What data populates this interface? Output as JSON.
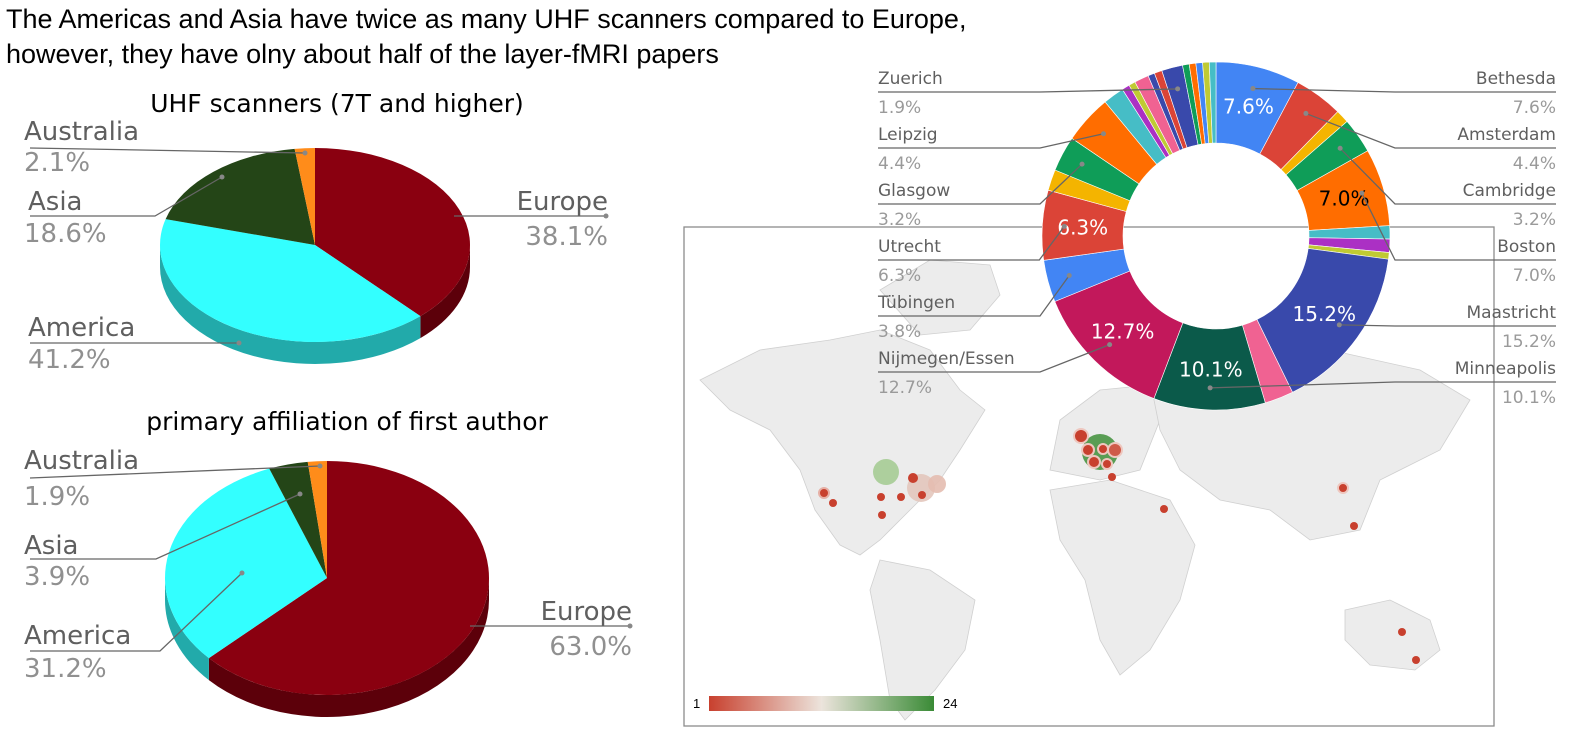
{
  "headline": {
    "line1": "The Americas and Asia have twice as many UHF scanners compared to Europe,",
    "line2": "however, they have olny about half of the layer-fMRI papers"
  },
  "chart_data": [
    {
      "id": "scanners",
      "type": "pie",
      "title": "UHF scanners (7T and higher)",
      "style": "3d",
      "slices": [
        {
          "label": "Europe",
          "value": 38.1,
          "pct_text": "38.1%",
          "color": "#8a0010",
          "side": "#5c000a"
        },
        {
          "label": "America",
          "value": 41.2,
          "pct_text": "41.2%",
          "color": "#33ffff",
          "side": "#22aaaa"
        },
        {
          "label": "Asia",
          "value": 18.6,
          "pct_text": "18.6%",
          "color": "#244517",
          "side": "#15290d"
        },
        {
          "label": "Australia",
          "value": 2.1,
          "pct_text": "2.1%",
          "color": "#ff8c1a",
          "side": "#c06000"
        }
      ]
    },
    {
      "id": "affiliation",
      "type": "pie",
      "title": "primary affiliation of first author",
      "style": "3d",
      "slices": [
        {
          "label": "Europe",
          "value": 63.0,
          "pct_text": "63.0%",
          "color": "#8a0010",
          "side": "#5c000a"
        },
        {
          "label": "America",
          "value": 31.2,
          "pct_text": "31.2%",
          "color": "#33ffff",
          "side": "#22aaaa"
        },
        {
          "label": "Asia",
          "value": 3.9,
          "pct_text": "3.9%",
          "color": "#244517",
          "side": "#15290d"
        },
        {
          "label": "Australia",
          "value": 1.9,
          "pct_text": "1.9%",
          "color": "#ff8c1a",
          "side": "#c06000"
        }
      ]
    },
    {
      "id": "cities",
      "type": "pie",
      "style": "donut",
      "slices": [
        {
          "label": "Bethesda",
          "value": 7.6,
          "pct_text": "7.6%",
          "color": "#4285f4",
          "inner": true
        },
        {
          "label": "Amsterdam",
          "value": 4.4,
          "pct_text": "4.4%",
          "color": "#db4437"
        },
        {
          "label": "",
          "value": 1.2,
          "color": "#f4b400"
        },
        {
          "label": "Cambridge",
          "value": 3.2,
          "pct_text": "3.2%",
          "color": "#0f9d58"
        },
        {
          "label": "Boston",
          "value": 7.0,
          "pct_text": "7.0%",
          "color": "#ff6d00",
          "inner": true,
          "inner_color": "#000000"
        },
        {
          "label": "",
          "value": 1.2,
          "color": "#46bdc6"
        },
        {
          "label": "",
          "value": 1.2,
          "color": "#ab30c4"
        },
        {
          "label": "",
          "value": 0.6,
          "color": "#c0ca33"
        },
        {
          "label": "Maastricht",
          "value": 15.2,
          "pct_text": "15.2%",
          "color": "#3949ab",
          "inner": true
        },
        {
          "label": "",
          "value": 2.6,
          "color": "#f06292"
        },
        {
          "label": "Minneapolis",
          "value": 10.1,
          "pct_text": "10.1%",
          "color": "#0b5a4a",
          "inner": true
        },
        {
          "label": "Nijmegen/Essen",
          "value": 12.7,
          "pct_text": "12.7%",
          "color": "#c2185b",
          "inner": true
        },
        {
          "label": "Tübingen",
          "value": 3.8,
          "pct_text": "3.8%",
          "color": "#4285f4"
        },
        {
          "label": "Utrecht",
          "value": 6.3,
          "pct_text": "6.3%",
          "color": "#db4437",
          "inner": true
        },
        {
          "label": "",
          "value": 1.9,
          "color": "#f4b400"
        },
        {
          "label": "Glasgow",
          "value": 3.2,
          "pct_text": "3.2%",
          "color": "#0f9d58"
        },
        {
          "label": "Leipzig",
          "value": 4.4,
          "pct_text": "4.4%",
          "color": "#ff6d00"
        },
        {
          "label": "",
          "value": 1.9,
          "color": "#46bdc6"
        },
        {
          "label": "",
          "value": 0.7,
          "color": "#ab30c4"
        },
        {
          "label": "",
          "value": 0.6,
          "color": "#c0ca33"
        },
        {
          "label": "",
          "value": 1.3,
          "color": "#f06292"
        },
        {
          "label": "",
          "value": 0.6,
          "color": "#3949ab"
        },
        {
          "label": "",
          "value": 0.7,
          "color": "#db4437"
        },
        {
          "label": "Zuerich",
          "value": 1.9,
          "pct_text": "1.9%",
          "color": "#3949ab"
        },
        {
          "label": "",
          "value": 0.6,
          "color": "#0f9d58"
        },
        {
          "label": "",
          "value": 0.6,
          "color": "#ff6d00"
        },
        {
          "label": "",
          "value": 0.6,
          "color": "#4285f4"
        },
        {
          "label": "",
          "value": 0.6,
          "color": "#c0ca33"
        },
        {
          "label": "",
          "value": 0.6,
          "color": "#46bdc6"
        }
      ]
    }
  ],
  "map": {
    "legend_min": "1",
    "legend_max": "24",
    "color_low": "#c8402e",
    "color_mid": "#ece4dc",
    "color_high": "#3a8b36"
  }
}
